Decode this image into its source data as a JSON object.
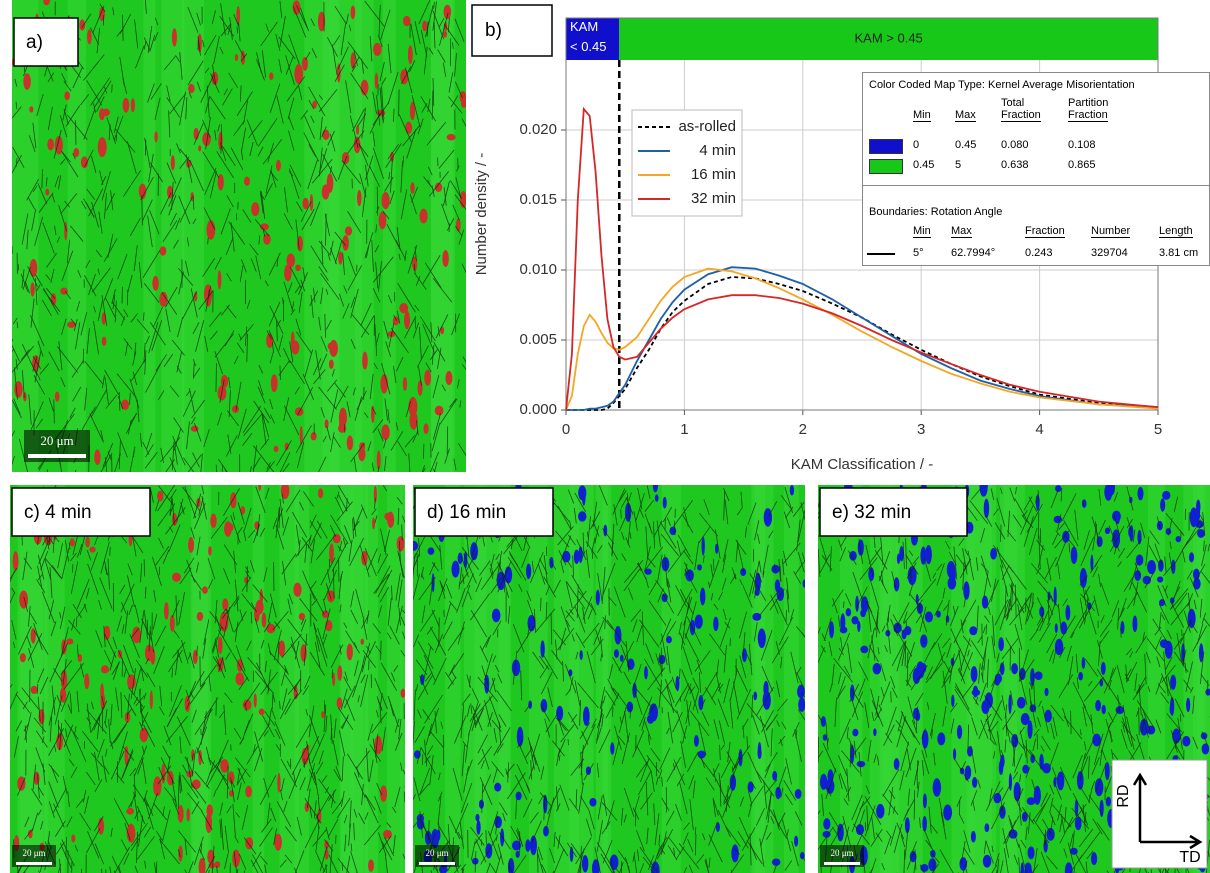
{
  "chart_data": {
    "type": "line",
    "xlabel": "KAM Classification / -",
    "ylabel": "Number density / -",
    "x": [
      0,
      0.05,
      0.1,
      0.15,
      0.2,
      0.25,
      0.3,
      0.35,
      0.4,
      0.45,
      0.5,
      0.6,
      0.7,
      0.8,
      0.9,
      1.0,
      1.2,
      1.4,
      1.6,
      1.8,
      2.0,
      2.25,
      2.5,
      2.75,
      3.0,
      3.25,
      3.5,
      3.75,
      4.0,
      4.5,
      5.0
    ],
    "series": [
      {
        "name": "as-rolled",
        "color": "#000000",
        "dashed": true,
        "values": [
          0,
          0,
          0,
          0,
          0,
          0,
          0,
          0.0001,
          0.0005,
          0.001,
          0.0015,
          0.003,
          0.0043,
          0.0058,
          0.007,
          0.0078,
          0.009,
          0.0095,
          0.0094,
          0.009,
          0.0085,
          0.0076,
          0.0066,
          0.0054,
          0.0043,
          0.0033,
          0.0024,
          0.0017,
          0.0011,
          0.0005,
          0.0002
        ]
      },
      {
        "name": "4 min",
        "color": "#1f5fa8",
        "values": [
          0,
          0,
          0,
          0,
          0.0001,
          0.0001,
          0.0002,
          0.0003,
          0.0006,
          0.0012,
          0.0018,
          0.0035,
          0.005,
          0.0065,
          0.0077,
          0.0086,
          0.0097,
          0.0102,
          0.0101,
          0.0096,
          0.009,
          0.0079,
          0.0066,
          0.0053,
          0.004,
          0.003,
          0.0021,
          0.0015,
          0.001,
          0.0004,
          0.0002
        ]
      },
      {
        "name": "16 min",
        "color": "#f5a623",
        "values": [
          0,
          0.001,
          0.004,
          0.006,
          0.0068,
          0.0063,
          0.0055,
          0.0048,
          0.0044,
          0.0043,
          0.0045,
          0.0052,
          0.0065,
          0.0078,
          0.0088,
          0.0095,
          0.0101,
          0.0099,
          0.0094,
          0.0087,
          0.0079,
          0.0068,
          0.0056,
          0.0045,
          0.0035,
          0.0026,
          0.0019,
          0.0013,
          0.0009,
          0.0004,
          0.0001
        ]
      },
      {
        "name": "32 min",
        "color": "#d62728",
        "values": [
          0,
          0.004,
          0.015,
          0.0215,
          0.021,
          0.017,
          0.011,
          0.0065,
          0.0045,
          0.0038,
          0.0036,
          0.0038,
          0.0048,
          0.0058,
          0.0066,
          0.0072,
          0.0079,
          0.0082,
          0.0082,
          0.008,
          0.0076,
          0.0069,
          0.006,
          0.005,
          0.0041,
          0.0033,
          0.0025,
          0.0018,
          0.0013,
          0.0006,
          0.0002
        ]
      }
    ],
    "xlim": [
      0,
      5
    ],
    "xticks": [
      0,
      1,
      2,
      3,
      4,
      5
    ],
    "ylim": [
      0,
      0.028
    ],
    "yticks": [
      {
        "value": 0,
        "label": "0.000"
      },
      0.005,
      {
        "value": 0.01,
        "label": "0.010"
      },
      0.015,
      {
        "value": 0.02,
        "label": "0.020"
      }
    ],
    "grid": true,
    "threshold": 0.45,
    "low_band": {
      "label": "KAM\n< 0.45",
      "color": "#1010cc"
    },
    "high_band": {
      "label": "KAM > 0.45",
      "color": "#18c818"
    }
  },
  "panels": [
    "a)",
    "b)",
    "c) 4 min",
    "d) 16 min",
    "e) 32 min"
  ],
  "scale_bar": "20 μm",
  "orientation": [
    "RD",
    "TD"
  ],
  "kam_table": {
    "title": "Color Coded Map Type: Kernel Average Misorientation",
    "headers": [
      "Min",
      "Max",
      "Total\nFraction",
      "Partition\nFraction"
    ],
    "rows": [
      [
        "0",
        "0.45",
        "0.080",
        "0.108"
      ],
      [
        "0.45",
        "5",
        "0.638",
        "0.865"
      ]
    ],
    "colors": [
      "#1010cc",
      "#18c818"
    ]
  },
  "boundary_table": {
    "title": "Boundaries: Rotation Angle",
    "headers": [
      "Min",
      "Max",
      "Fraction",
      "Number",
      "Length"
    ],
    "rows": [
      [
        "5°",
        "62.7994°",
        "0.243",
        "329704",
        "3.81 cm"
      ]
    ]
  }
}
